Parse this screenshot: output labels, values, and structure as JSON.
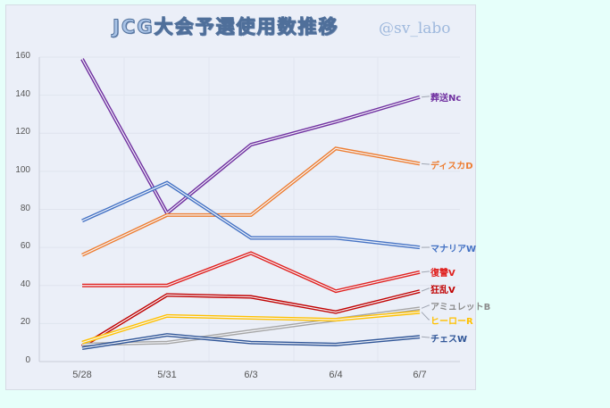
{
  "title": "JCG大会予選使用数推移",
  "handle": "@sv_labo",
  "chart_data": {
    "type": "line",
    "title": "JCG大会予選使用数推移",
    "xlabel": "",
    "ylabel": "",
    "categories": [
      "5/28",
      "5/31",
      "6/3",
      "6/4",
      "6/7"
    ],
    "ylim": [
      0,
      160
    ],
    "yticks": [
      0,
      20,
      40,
      60,
      80,
      100,
      120,
      140,
      160
    ],
    "grid": true,
    "legend_position": "inline-right",
    "series": [
      {
        "name": "葬送Nc",
        "color": "#7030a0",
        "values": [
          159,
          78,
          114,
          126,
          139
        ]
      },
      {
        "name": "ディスカD",
        "color": "#ed7d31",
        "values": [
          56,
          77,
          77,
          112,
          104
        ]
      },
      {
        "name": "マナリアW",
        "color": "#4472c4",
        "values": [
          74,
          94,
          65,
          65,
          60
        ]
      },
      {
        "name": "復讐V",
        "color": "#e0201e",
        "values": [
          40,
          40,
          57,
          37,
          47
        ]
      },
      {
        "name": "狂乱V",
        "color": "#c00000",
        "values": [
          8,
          35,
          34,
          26,
          37
        ]
      },
      {
        "name": "アミュレットB",
        "color": "#a5a5a5",
        "values": [
          9,
          10,
          16,
          22,
          28
        ]
      },
      {
        "name": "ヒーローR",
        "color": "#ffc000",
        "values": [
          10,
          24,
          23,
          22,
          26
        ]
      },
      {
        "name": "チェスW",
        "color": "#2f5597",
        "values": [
          7,
          14,
          10,
          9,
          13
        ]
      }
    ]
  }
}
